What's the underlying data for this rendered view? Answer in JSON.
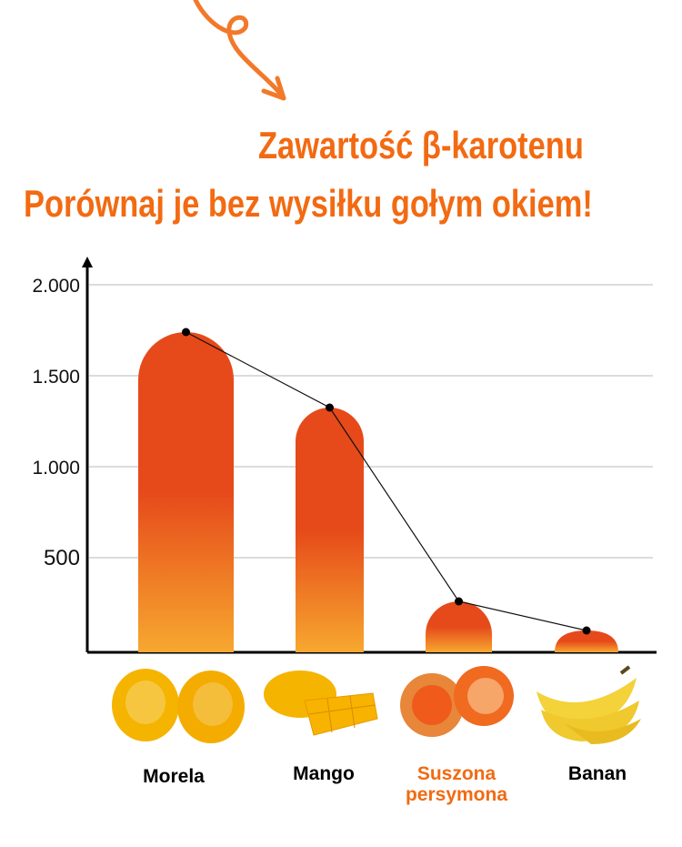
{
  "header": {
    "title": "Zawartość β-karotenu",
    "subtitle": "Porównaj je bez wysiłku gołym okiem!"
  },
  "colors": {
    "accent": "#f26a12",
    "bar_top": "#e64a1a",
    "bar_bottom": "#f7a830",
    "highlight_label": "#f26a12"
  },
  "chart_data": {
    "type": "bar",
    "categories": [
      "Morela",
      "Mango",
      "Suszona persymona",
      "Banan"
    ],
    "values": [
      1740,
      1325,
      260,
      100
    ],
    "yticks": [
      "2.000",
      "1.500",
      "1.000",
      "500"
    ],
    "ylim": [
      0,
      2000
    ],
    "grid": true,
    "line_overlay": true,
    "highlighted_category": "Suszona persymona"
  }
}
